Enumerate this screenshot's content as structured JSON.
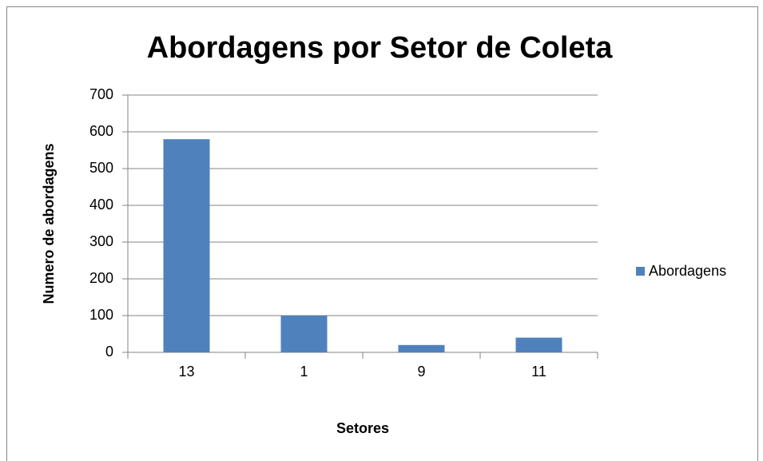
{
  "chart_data": {
    "type": "bar",
    "title": "Abordagens por Setor de Coleta",
    "x_label": "Setores",
    "y_label": "Numero de abordagens",
    "categories": [
      "13",
      "1",
      "9",
      "11"
    ],
    "series": [
      {
        "name": "Abordagens",
        "color": "#4f81bd",
        "values": [
          580,
          100,
          20,
          40
        ]
      }
    ],
    "ylim": [
      0,
      700
    ],
    "yticks": [
      0,
      100,
      200,
      300,
      400,
      500,
      600,
      700
    ],
    "grid": true,
    "legend": "right"
  }
}
